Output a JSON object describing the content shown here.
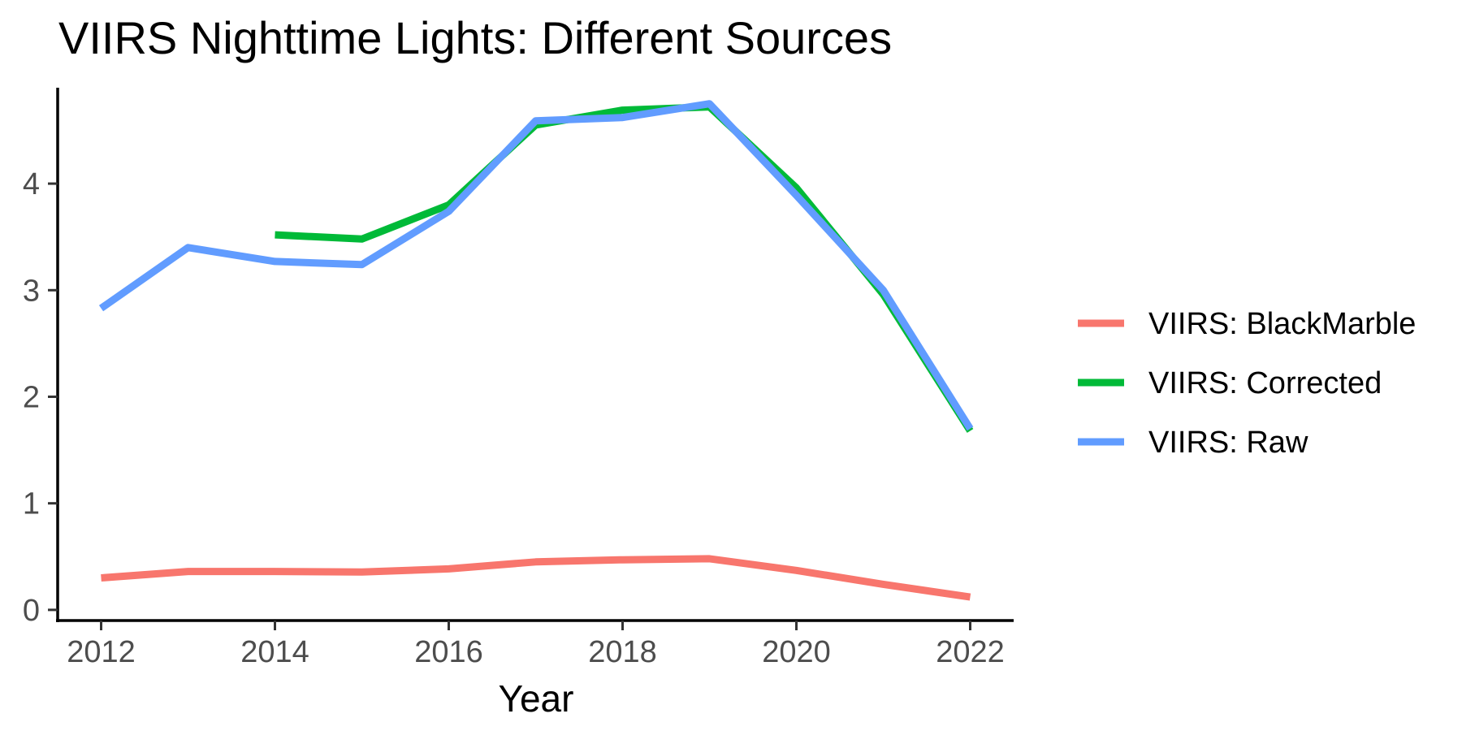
{
  "chart_data": {
    "type": "line",
    "title": "VIIRS Nighttime Lights: Different Sources",
    "xlabel": "Year",
    "ylabel": "",
    "xlim": [
      2011.5,
      2022.5
    ],
    "ylim": [
      -0.1,
      4.9
    ],
    "x_ticks": [
      2012,
      2014,
      2016,
      2018,
      2020,
      2022
    ],
    "x_tick_labels": [
      "2012",
      "2014",
      "2016",
      "2018",
      "2020",
      "2022"
    ],
    "y_ticks": [
      0,
      1,
      2,
      3,
      4
    ],
    "y_tick_labels": [
      "0",
      "1",
      "2",
      "3",
      "4"
    ],
    "grid": false,
    "legend_position": "right",
    "series": [
      {
        "name": "VIIRS: BlackMarble",
        "color": "#F8766D",
        "x": [
          2012,
          2013,
          2014,
          2015,
          2016,
          2017,
          2018,
          2019,
          2020,
          2021,
          2022
        ],
        "values": [
          0.3,
          0.36,
          0.36,
          0.355,
          0.385,
          0.45,
          0.47,
          0.48,
          0.37,
          0.24,
          0.12
        ]
      },
      {
        "name": "VIIRS: Corrected",
        "color": "#00BA38",
        "x": [
          2014,
          2015,
          2016,
          2017,
          2018,
          2019,
          2020,
          2021,
          2022
        ],
        "values": [
          3.52,
          3.48,
          3.8,
          4.55,
          4.69,
          4.72,
          3.96,
          2.96,
          1.68
        ]
      },
      {
        "name": "VIIRS: Raw",
        "color": "#619CFF",
        "x": [
          2012,
          2013,
          2014,
          2015,
          2016,
          2017,
          2018,
          2019,
          2020,
          2021,
          2022
        ],
        "values": [
          2.83,
          3.4,
          3.27,
          3.24,
          3.74,
          4.59,
          4.62,
          4.75,
          3.89,
          3.0,
          1.7
        ]
      }
    ]
  }
}
